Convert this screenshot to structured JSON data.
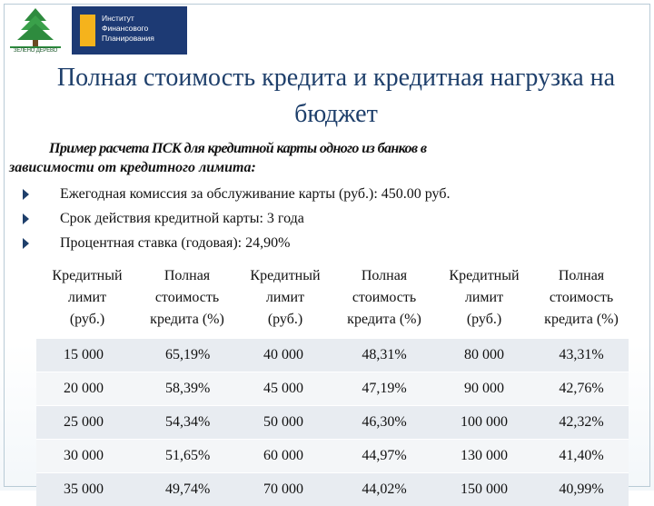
{
  "logos": {
    "left_caption": "ЗЕЛЕНО ДЕРЕВО",
    "institute_lines": [
      "Институт",
      "Финансового",
      "Планирования"
    ]
  },
  "title": "Полная стоимость кредита и кредитная нагрузка на бюджет",
  "intro": {
    "line1": "Пример расчета ПСК для кредитной карты одного из банков в",
    "line2": "зависимости от кредитного лимита:"
  },
  "bullets": [
    "Ежегодная комиссия за обслуживание карты (руб.): 450.00 руб.",
    "Срок действия кредитной карты: 3 года",
    "Процентная ставка (годовая): 24,90%"
  ],
  "table": {
    "headers": [
      [
        "Кредитный",
        "лимит",
        "(руб.)"
      ],
      [
        "Полная",
        "стоимость",
        "кредита (%)"
      ],
      [
        "Кредитный",
        "лимит",
        "(руб.)"
      ],
      [
        "Полная",
        "стоимость",
        "кредита (%)"
      ],
      [
        "Кредитный",
        "лимит",
        "(руб.)"
      ],
      [
        "Полная",
        "стоимость",
        "кредита (%)"
      ]
    ],
    "rows": [
      [
        "15 000",
        "65,19%",
        "40 000",
        "48,31%",
        "80 000",
        "43,31%"
      ],
      [
        "20 000",
        "58,39%",
        "45 000",
        "47,19%",
        "90 000",
        "42,76%"
      ],
      [
        "25 000",
        "54,34%",
        "50 000",
        "46,30%",
        "100 000",
        "42,32%"
      ],
      [
        "30 000",
        "51,65%",
        "60 000",
        "44,97%",
        "130 000",
        "41,40%"
      ],
      [
        "35 000",
        "49,74%",
        "70 000",
        "44,02%",
        "150 000",
        "40,99%"
      ]
    ]
  },
  "colors": {
    "title": "#1e3f6b",
    "bullet": "#1e3f6b",
    "logo_blue": "#1d3a74",
    "logo_yellow": "#f5b31c",
    "tree_green": "#2e8b3e"
  }
}
